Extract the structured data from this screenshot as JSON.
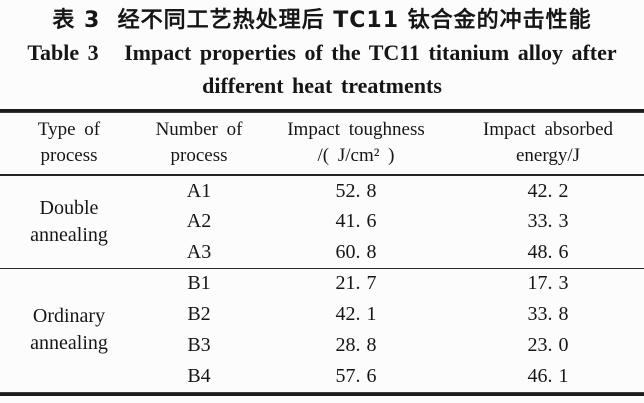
{
  "title": {
    "zh": "表 3  经不同工艺热处理后 TC11 钛合金的冲击性能",
    "en_line1": "Table 3   Impact properties of the TC11 titanium alloy after",
    "en_line2": "different heat treatments"
  },
  "table": {
    "columns": [
      {
        "line1": "Type of",
        "line2": "process"
      },
      {
        "line1": "Number of",
        "line2": "process"
      },
      {
        "line1": "Impact toughness",
        "line2": "/( J/cm² )"
      },
      {
        "line1": "Impact absorbed",
        "line2": "energy/J"
      }
    ],
    "groups": [
      {
        "type_line1": "Double",
        "type_line2": "annealing",
        "rows": [
          {
            "number": "A1",
            "toughness": "52. 8",
            "energy": "42. 2"
          },
          {
            "number": "A2",
            "toughness": "41. 6",
            "energy": "33. 3"
          },
          {
            "number": "A3",
            "toughness": "60. 8",
            "energy": "48. 6"
          }
        ]
      },
      {
        "type_line1": "Ordinary",
        "type_line2": "annealing",
        "rows": [
          {
            "number": "B1",
            "toughness": "21. 7",
            "energy": "17. 3"
          },
          {
            "number": "B2",
            "toughness": "42. 1",
            "energy": "33. 8"
          },
          {
            "number": "B3",
            "toughness": "28. 8",
            "energy": "23. 0"
          },
          {
            "number": "B4",
            "toughness": "57. 6",
            "energy": "46. 1"
          }
        ]
      }
    ]
  },
  "colors": {
    "background": "#fcfcfc",
    "text": "#161616",
    "rule": "#1c1c1c"
  }
}
